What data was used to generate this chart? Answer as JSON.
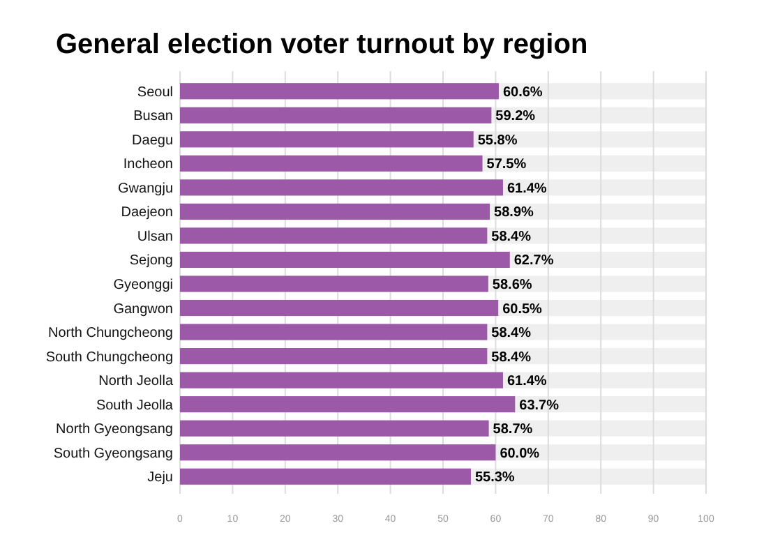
{
  "chart_data": {
    "type": "bar",
    "orientation": "horizontal",
    "title": "General election voter turnout by region",
    "categories": [
      "Seoul",
      "Busan",
      "Daegu",
      "Incheon",
      "Gwangju",
      "Daejeon",
      "Ulsan",
      "Sejong",
      "Gyeonggi",
      "Gangwon",
      "North Chungcheong",
      "South Chungcheong",
      "North Jeolla",
      "South Jeolla",
      "North Gyeongsang",
      "South Gyeongsang",
      "Jeju"
    ],
    "values": [
      60.6,
      59.2,
      55.8,
      57.5,
      61.4,
      58.9,
      58.4,
      62.7,
      58.6,
      60.5,
      58.4,
      58.4,
      61.4,
      63.7,
      58.7,
      60.0,
      55.3
    ],
    "value_labels": [
      "60.6%",
      "59.2%",
      "55.8%",
      "57.5%",
      "61.4%",
      "58.9%",
      "58.4%",
      "62.7%",
      "58.6%",
      "60.5%",
      "58.4%",
      "58.4%",
      "61.4%",
      "63.7%",
      "58.7%",
      "60.0%",
      "55.3%"
    ],
    "color": "#9b59a8",
    "xlim": [
      0,
      100
    ],
    "xticks": [
      0,
      10,
      20,
      30,
      40,
      50,
      60,
      70,
      80,
      90,
      100
    ],
    "grid": "x"
  }
}
